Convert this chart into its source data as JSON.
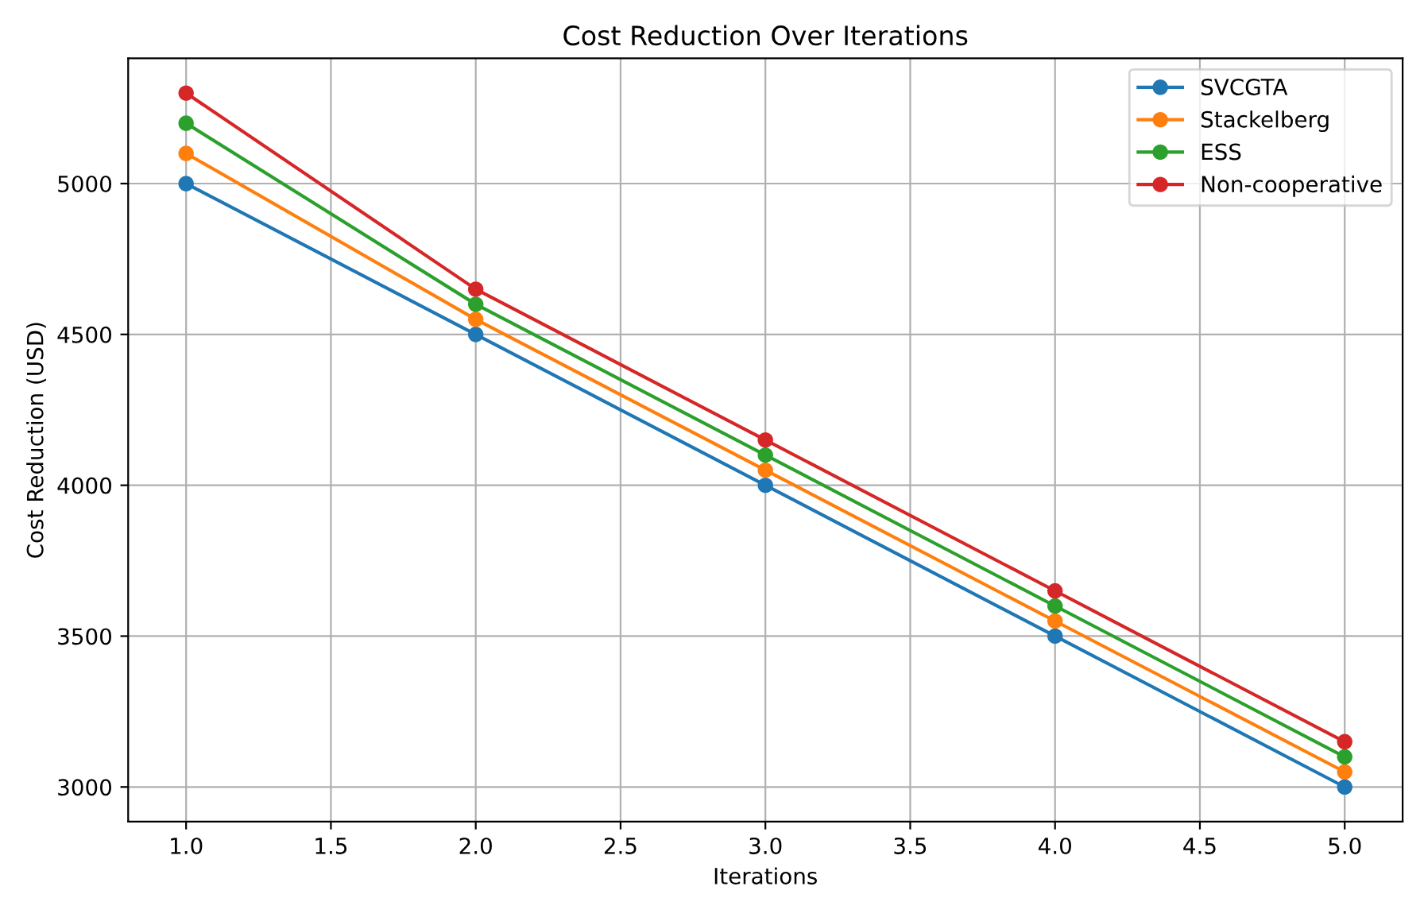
{
  "chart_data": {
    "type": "line",
    "title": "Cost Reduction Over Iterations",
    "xlabel": "Iterations",
    "ylabel": "Cost Reduction (USD)",
    "x": [
      1,
      2,
      3,
      4,
      5
    ],
    "series": [
      {
        "name": "SVCGTA",
        "color": "#1f77b4",
        "values": [
          5000,
          4500,
          4000,
          3500,
          3000
        ]
      },
      {
        "name": "Stackelberg",
        "color": "#ff7f0e",
        "values": [
          5100,
          4550,
          4050,
          3550,
          3050
        ]
      },
      {
        "name": "ESS",
        "color": "#2ca02c",
        "values": [
          5200,
          4600,
          4100,
          3600,
          3100
        ]
      },
      {
        "name": "Non-cooperative",
        "color": "#d62728",
        "values": [
          5300,
          4650,
          4150,
          3650,
          3150
        ]
      }
    ],
    "xlim": [
      0.8,
      5.2
    ],
    "xticks": [
      {
        "value": 1,
        "label": "1.0"
      },
      {
        "value": 1.5,
        "label": "1.5"
      },
      {
        "value": 2,
        "label": "2.0"
      },
      {
        "value": 2.5,
        "label": "2.5"
      },
      {
        "value": 3,
        "label": "3.0"
      },
      {
        "value": 3.5,
        "label": "3.5"
      },
      {
        "value": 4,
        "label": "4.0"
      },
      {
        "value": 4.5,
        "label": "4.5"
      },
      {
        "value": 5,
        "label": "5.0"
      }
    ],
    "ylim": [
      2885,
      5415
    ],
    "yticks": [
      3000,
      3500,
      4000,
      4500,
      5000
    ],
    "grid": true,
    "legend": "top right",
    "marker": "circle",
    "line_style": "solid"
  }
}
